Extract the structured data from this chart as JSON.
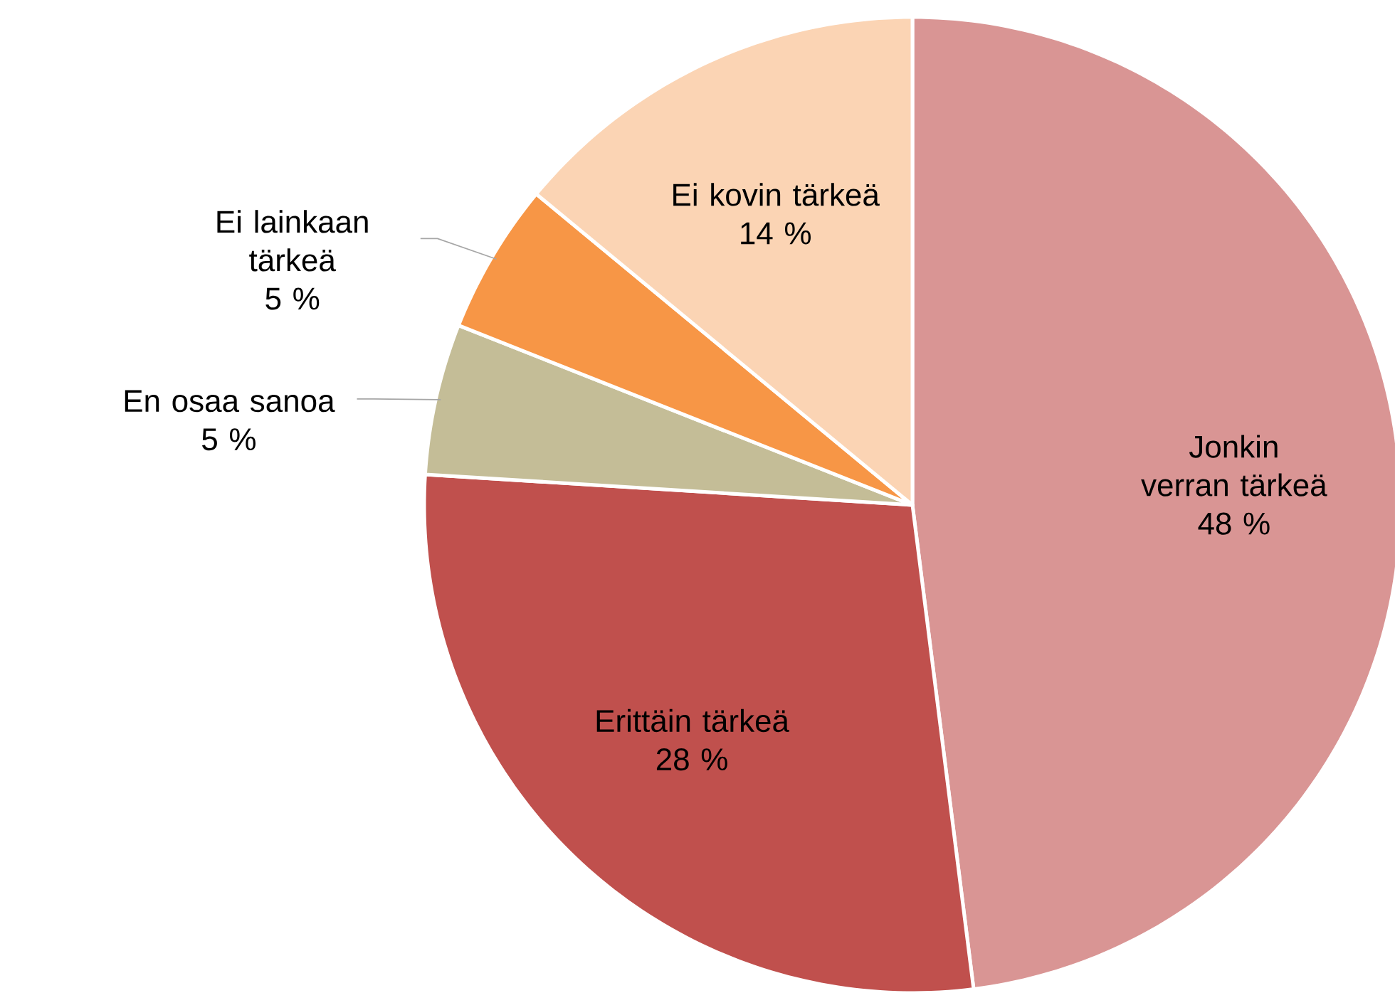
{
  "chart_data": {
    "type": "pie",
    "categories": [
      "Jonkin verran tärkeä",
      "Erittäin tärkeä",
      "En osaa sanoa",
      "Ei lainkaan tärkeä",
      "Ei kovin tärkeä"
    ],
    "values": [
      48,
      28,
      5,
      5,
      14
    ],
    "colors": [
      "#d99594",
      "#c0504d",
      "#c4bd97",
      "#f79646",
      "#fbd4b4"
    ],
    "value_labels": [
      "48 %",
      "28 %",
      "5 %",
      "5 %",
      "14 %"
    ]
  }
}
